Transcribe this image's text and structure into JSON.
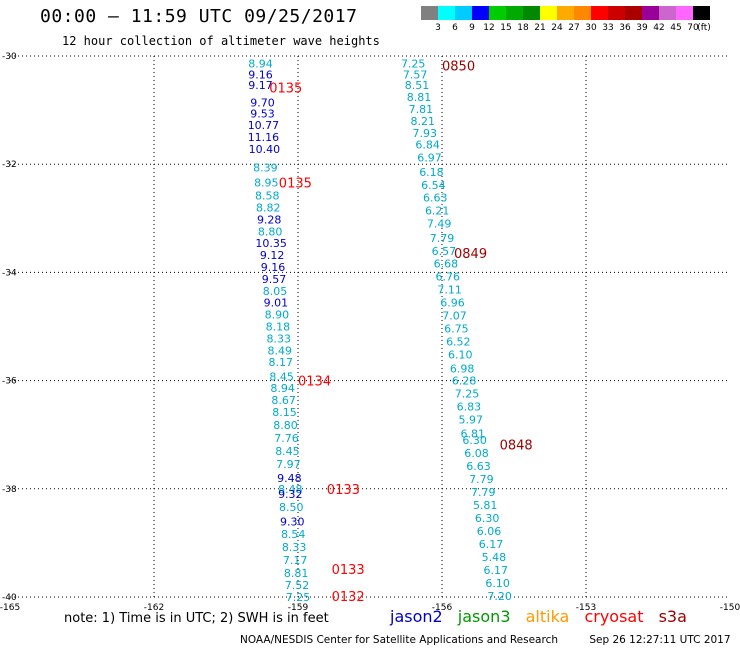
{
  "title": "00:00 – 11:59 UTC 09/25/2017",
  "subtitle": "12 hour collection of altimeter wave heights",
  "colorbar": {
    "colors": [
      "#808080",
      "#00ffff",
      "#00ccff",
      "#0000ff",
      "#00cc00",
      "#00aa00",
      "#008800",
      "#ffff00",
      "#ffaa00",
      "#ff8800",
      "#ff0000",
      "#cc0000",
      "#aa0000",
      "#990099",
      "#cc66cc",
      "#ff66ff",
      "#000000"
    ],
    "labels": [
      "3",
      "6",
      "9",
      "12",
      "15",
      "18",
      "21",
      "24",
      "27",
      "30",
      "33",
      "36",
      "39",
      "42",
      "45",
      "70"
    ],
    "unit": "(ft)"
  },
  "note": "note:  1) Time is in UTC; 2) SWH is in feet",
  "legend": [
    {
      "name": "jason2",
      "color": "#0000cc"
    },
    {
      "name": "jason3",
      "color": "#009900"
    },
    {
      "name": "altika",
      "color": "#ff9900"
    },
    {
      "name": "cryosat",
      "color": "#ff0000"
    },
    {
      "name": "s3a",
      "color": "#990000"
    }
  ],
  "footer": {
    "credit": "NOAA/NESDIS Center for Satellite Applications and Research",
    "timestamp": "Sep 26 12:27:11 UTC 2017"
  },
  "chart_data": {
    "type": "scatter",
    "xlim": [
      -165,
      -150
    ],
    "ylim": [
      -40,
      -30
    ],
    "x_ticks": [
      "-165",
      "-162",
      "-159",
      "-156",
      "-153",
      "-150"
    ],
    "y_ticks": [
      "-30",
      "-32",
      "-34",
      "-36",
      "-38",
      "-40"
    ],
    "grid": true,
    "time_labels": [
      {
        "text": "0850",
        "lon": -156.0,
        "lat": -30.18,
        "color": "#990000"
      },
      {
        "text": "0135",
        "lon": -159.6,
        "lat": -30.58,
        "color": "#ff0000"
      },
      {
        "text": "0135",
        "lon": -159.4,
        "lat": -32.34,
        "color": "#ff0000"
      },
      {
        "text": "0849",
        "lon": -155.75,
        "lat": -33.64,
        "color": "#990000"
      },
      {
        "text": "0134",
        "lon": -159.0,
        "lat": -36.0,
        "color": "#ff0000"
      },
      {
        "text": "0848",
        "lon": -154.8,
        "lat": -37.18,
        "color": "#990000"
      },
      {
        "text": "0133",
        "lon": -158.4,
        "lat": -38.0,
        "color": "#ff0000"
      },
      {
        "text": "0133",
        "lon": -158.3,
        "lat": -39.48,
        "color": "#ff0000"
      },
      {
        "text": "0132",
        "lon": -158.3,
        "lat": -39.98,
        "color": "#ff0000"
      }
    ],
    "series": [
      {
        "points": [
          {
            "lon": -159.78,
            "lat": -30.14,
            "v": "8.94",
            "c": "#00aacc"
          },
          {
            "lon": -159.78,
            "lat": -30.34,
            "v": "9.16",
            "c": "#0000cc"
          },
          {
            "lon": -159.78,
            "lat": -30.54,
            "v": "9.17",
            "c": "#0000cc"
          },
          {
            "lon": -159.74,
            "lat": -30.86,
            "v": "9.70",
            "c": "#0000cc"
          },
          {
            "lon": -159.74,
            "lat": -31.06,
            "v": "9.53",
            "c": "#0000cc"
          },
          {
            "lon": -159.72,
            "lat": -31.28,
            "v": "10.77",
            "c": "#0000cc"
          },
          {
            "lon": -159.72,
            "lat": -31.5,
            "v": "11.16",
            "c": "#0000cc"
          },
          {
            "lon": -159.7,
            "lat": -31.72,
            "v": "10.40",
            "c": "#0000cc"
          },
          {
            "lon": -159.68,
            "lat": -32.06,
            "v": "8.39",
            "c": "#00aacc"
          },
          {
            "lon": -159.66,
            "lat": -32.34,
            "v": "8.95",
            "c": "#00aacc"
          },
          {
            "lon": -159.64,
            "lat": -32.58,
            "v": "8.58",
            "c": "#00aacc"
          },
          {
            "lon": -159.62,
            "lat": -32.8,
            "v": "8.82",
            "c": "#00aacc"
          },
          {
            "lon": -159.6,
            "lat": -33.02,
            "v": "9.28",
            "c": "#0000cc"
          },
          {
            "lon": -159.58,
            "lat": -33.24,
            "v": "8.80",
            "c": "#00aacc"
          },
          {
            "lon": -159.56,
            "lat": -33.46,
            "v": "10.35",
            "c": "#0000cc"
          },
          {
            "lon": -159.54,
            "lat": -33.68,
            "v": "9.12",
            "c": "#0000cc"
          },
          {
            "lon": -159.52,
            "lat": -33.9,
            "v": "9.16",
            "c": "#0000cc"
          },
          {
            "lon": -159.5,
            "lat": -34.12,
            "v": "9.57",
            "c": "#0000cc"
          },
          {
            "lon": -159.48,
            "lat": -34.34,
            "v": "8.05",
            "c": "#00aacc"
          },
          {
            "lon": -159.46,
            "lat": -34.56,
            "v": "9.01",
            "c": "#0000cc"
          },
          {
            "lon": -159.44,
            "lat": -34.78,
            "v": "8.90",
            "c": "#00aacc"
          },
          {
            "lon": -159.42,
            "lat": -35.0,
            "v": "8.18",
            "c": "#00aacc"
          },
          {
            "lon": -159.4,
            "lat": -35.22,
            "v": "8.33",
            "c": "#00aacc"
          },
          {
            "lon": -159.38,
            "lat": -35.44,
            "v": "8.49",
            "c": "#00aacc"
          },
          {
            "lon": -159.36,
            "lat": -35.66,
            "v": "8.17",
            "c": "#00aacc"
          },
          {
            "lon": -159.34,
            "lat": -35.92,
            "v": "8.45",
            "c": "#00aacc"
          },
          {
            "lon": -159.32,
            "lat": -36.14,
            "v": "8.94",
            "c": "#00aacc"
          },
          {
            "lon": -159.3,
            "lat": -36.36,
            "v": "8.67",
            "c": "#00aacc"
          },
          {
            "lon": -159.28,
            "lat": -36.58,
            "v": "8.15",
            "c": "#00aacc"
          },
          {
            "lon": -159.26,
            "lat": -36.82,
            "v": "8.80",
            "c": "#00aacc"
          },
          {
            "lon": -159.24,
            "lat": -37.06,
            "v": "7.76",
            "c": "#00aacc"
          },
          {
            "lon": -159.22,
            "lat": -37.3,
            "v": "8.45",
            "c": "#00aacc"
          },
          {
            "lon": -159.2,
            "lat": -37.54,
            "v": "7.97",
            "c": "#00aacc"
          },
          {
            "lon": -159.18,
            "lat": -37.8,
            "v": "9.48",
            "c": "#0000cc"
          },
          {
            "lon": -159.16,
            "lat": -38.0,
            "v": "8.48",
            "c": "#00aacc"
          },
          {
            "lon": -159.16,
            "lat": -38.1,
            "v": "9.32",
            "c": "#0000cc"
          },
          {
            "lon": -159.14,
            "lat": -38.34,
            "v": "8.50",
            "c": "#00aacc"
          },
          {
            "lon": -159.12,
            "lat": -38.6,
            "v": "9.30",
            "c": "#0000cc"
          },
          {
            "lon": -159.1,
            "lat": -38.84,
            "v": "8.54",
            "c": "#00aacc"
          },
          {
            "lon": -159.08,
            "lat": -39.08,
            "v": "8.33",
            "c": "#00aacc"
          },
          {
            "lon": -159.06,
            "lat": -39.32,
            "v": "7.17",
            "c": "#00aacc"
          },
          {
            "lon": -159.04,
            "lat": -39.56,
            "v": "8.81",
            "c": "#00aacc"
          },
          {
            "lon": -159.02,
            "lat": -39.78,
            "v": "7.52",
            "c": "#00aacc"
          },
          {
            "lon": -159.0,
            "lat": -40.0,
            "v": "7.25",
            "c": "#00aacc"
          }
        ]
      },
      {
        "points": [
          {
            "lon": -156.6,
            "lat": -30.14,
            "v": "7.25",
            "c": "#00aacc"
          },
          {
            "lon": -156.56,
            "lat": -30.34,
            "v": "7.57",
            "c": "#00aacc"
          },
          {
            "lon": -156.52,
            "lat": -30.54,
            "v": "8.51",
            "c": "#00aacc"
          },
          {
            "lon": -156.48,
            "lat": -30.76,
            "v": "8.81",
            "c": "#00aacc"
          },
          {
            "lon": -156.44,
            "lat": -30.98,
            "v": "7.81",
            "c": "#00aacc"
          },
          {
            "lon": -156.4,
            "lat": -31.2,
            "v": "8.21",
            "c": "#00aacc"
          },
          {
            "lon": -156.36,
            "lat": -31.42,
            "v": "7.93",
            "c": "#00aacc"
          },
          {
            "lon": -156.3,
            "lat": -31.64,
            "v": "6.84",
            "c": "#00aacc"
          },
          {
            "lon": -156.26,
            "lat": -31.88,
            "v": "6.97",
            "c": "#00aacc"
          },
          {
            "lon": -156.22,
            "lat": -32.14,
            "v": "6.18",
            "c": "#00aacc"
          },
          {
            "lon": -156.18,
            "lat": -32.38,
            "v": "6.54",
            "c": "#00aacc"
          },
          {
            "lon": -156.14,
            "lat": -32.62,
            "v": "6.63",
            "c": "#00aacc"
          },
          {
            "lon": -156.1,
            "lat": -32.86,
            "v": "6.21",
            "c": "#00aacc"
          },
          {
            "lon": -156.06,
            "lat": -33.1,
            "v": "7.49",
            "c": "#00aacc"
          },
          {
            "lon": -156.0,
            "lat": -33.36,
            "v": "7.79",
            "c": "#00aacc"
          },
          {
            "lon": -155.96,
            "lat": -33.6,
            "v": "6.57",
            "c": "#00aacc"
          },
          {
            "lon": -155.92,
            "lat": -33.84,
            "v": "6.68",
            "c": "#00aacc"
          },
          {
            "lon": -155.88,
            "lat": -34.08,
            "v": "6.76",
            "c": "#00aacc"
          },
          {
            "lon": -155.84,
            "lat": -34.32,
            "v": "7.11",
            "c": "#00aacc"
          },
          {
            "lon": -155.78,
            "lat": -34.56,
            "v": "6.96",
            "c": "#00aacc"
          },
          {
            "lon": -155.74,
            "lat": -34.8,
            "v": "7.07",
            "c": "#00aacc"
          },
          {
            "lon": -155.7,
            "lat": -35.04,
            "v": "6.75",
            "c": "#00aacc"
          },
          {
            "lon": -155.66,
            "lat": -35.28,
            "v": "6.52",
            "c": "#00aacc"
          },
          {
            "lon": -155.62,
            "lat": -35.52,
            "v": "6.10",
            "c": "#00aacc"
          },
          {
            "lon": -155.58,
            "lat": -35.78,
            "v": "6.98",
            "c": "#00aacc"
          },
          {
            "lon": -155.54,
            "lat": -36.0,
            "v": "6.28",
            "c": "#00aacc"
          },
          {
            "lon": -155.48,
            "lat": -36.24,
            "v": "7.25",
            "c": "#00aacc"
          },
          {
            "lon": -155.44,
            "lat": -36.48,
            "v": "6.83",
            "c": "#00aacc"
          },
          {
            "lon": -155.4,
            "lat": -36.72,
            "v": "5.97",
            "c": "#00aacc"
          },
          {
            "lon": -155.36,
            "lat": -36.98,
            "v": "6.81",
            "c": "#00aacc"
          },
          {
            "lon": -155.32,
            "lat": -37.1,
            "v": "6.30",
            "c": "#00aacc"
          },
          {
            "lon": -155.28,
            "lat": -37.34,
            "v": "6.08",
            "c": "#00aacc"
          },
          {
            "lon": -155.24,
            "lat": -37.58,
            "v": "6.63",
            "c": "#00aacc"
          },
          {
            "lon": -155.18,
            "lat": -37.82,
            "v": "7.79",
            "c": "#00aacc"
          },
          {
            "lon": -155.14,
            "lat": -38.06,
            "v": "7.79",
            "c": "#00aacc"
          },
          {
            "lon": -155.1,
            "lat": -38.3,
            "v": "5.81",
            "c": "#00aacc"
          },
          {
            "lon": -155.06,
            "lat": -38.54,
            "v": "6.30",
            "c": "#00aacc"
          },
          {
            "lon": -155.02,
            "lat": -38.78,
            "v": "6.06",
            "c": "#00aacc"
          },
          {
            "lon": -154.98,
            "lat": -39.02,
            "v": "6.17",
            "c": "#00aacc"
          },
          {
            "lon": -154.92,
            "lat": -39.26,
            "v": "5.48",
            "c": "#00aacc"
          },
          {
            "lon": -154.88,
            "lat": -39.5,
            "v": "6.17",
            "c": "#00aacc"
          },
          {
            "lon": -154.84,
            "lat": -39.74,
            "v": "6.10",
            "c": "#00aacc"
          },
          {
            "lon": -154.8,
            "lat": -39.98,
            "v": "7.20",
            "c": "#00aacc"
          }
        ]
      }
    ]
  }
}
